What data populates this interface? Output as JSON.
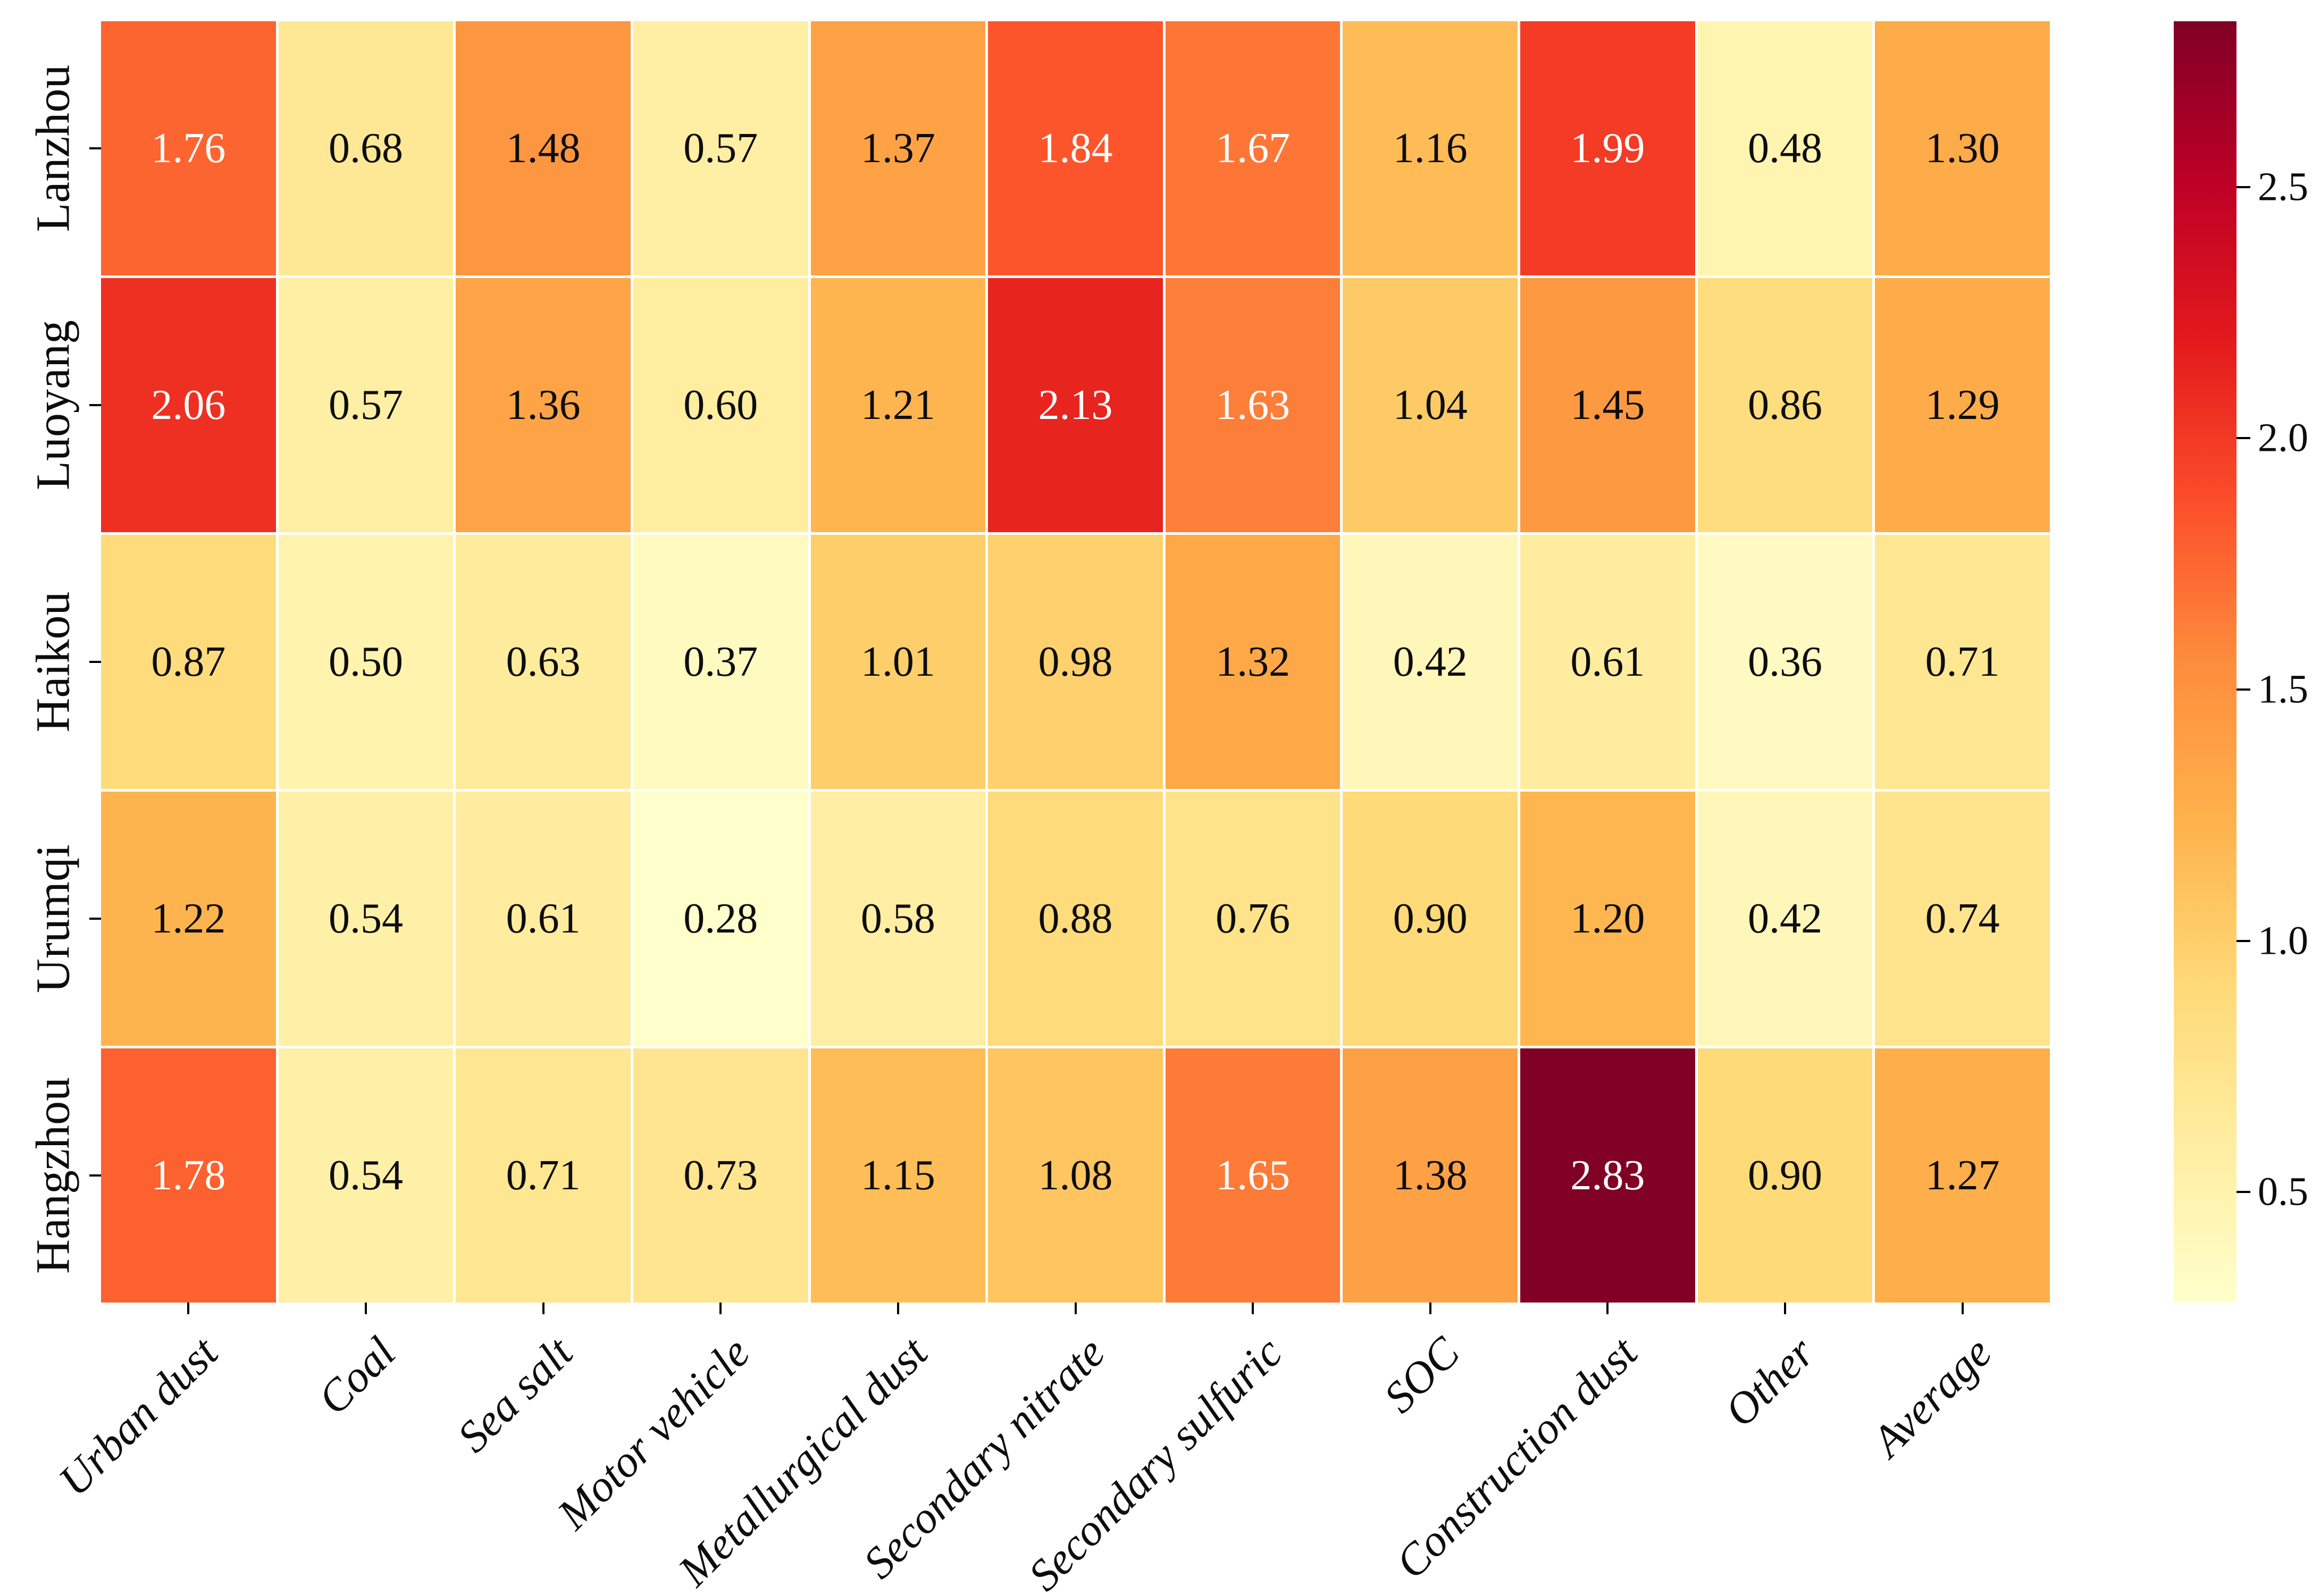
{
  "figure": {
    "background": "#ffffff"
  },
  "chart_data": {
    "type": "heatmap",
    "rows": [
      "Lanzhou",
      "Luoyang",
      "Haikou",
      "Urumqi",
      "Hangzhou"
    ],
    "columns": [
      "Urban dust",
      "Coal",
      "Sea salt",
      "Motor vehicle",
      "Metallurgical dust",
      "Secondary nitrate",
      "Secondary sulfuric",
      "SOC",
      "Construction dust",
      "Other",
      "Average"
    ],
    "values": [
      [
        1.76,
        0.68,
        1.48,
        0.57,
        1.37,
        1.84,
        1.67,
        1.16,
        1.99,
        0.48,
        1.3
      ],
      [
        2.06,
        0.57,
        1.36,
        0.6,
        1.21,
        2.13,
        1.63,
        1.04,
        1.45,
        0.86,
        1.29
      ],
      [
        0.87,
        0.5,
        0.63,
        0.37,
        1.01,
        0.98,
        1.32,
        0.42,
        0.61,
        0.36,
        0.71
      ],
      [
        1.22,
        0.54,
        0.61,
        0.28,
        0.58,
        0.88,
        0.76,
        0.9,
        1.2,
        0.42,
        0.74
      ],
      [
        1.78,
        0.54,
        0.71,
        0.73,
        1.15,
        1.08,
        1.65,
        1.38,
        2.83,
        0.9,
        1.27
      ]
    ],
    "value_decimals": 2,
    "vmin": 0.28,
    "vmax": 2.83,
    "colormap": {
      "name": "YlOrRd",
      "stops": [
        {
          "pos": 0.0,
          "color": "#ffffcc"
        },
        {
          "pos": 0.125,
          "color": "#ffeda0"
        },
        {
          "pos": 0.25,
          "color": "#fed976"
        },
        {
          "pos": 0.375,
          "color": "#feb24c"
        },
        {
          "pos": 0.5,
          "color": "#fd8d3c"
        },
        {
          "pos": 0.625,
          "color": "#fc4e2a"
        },
        {
          "pos": 0.75,
          "color": "#e31a1c"
        },
        {
          "pos": 0.875,
          "color": "#bd0026"
        },
        {
          "pos": 1.0,
          "color": "#800026"
        }
      ]
    },
    "annotation_text_colors": {
      "light": "#ffffff",
      "dark": "#0d0d0d",
      "luminance_threshold": 0.408
    },
    "cell_divider_color": "#ffffff",
    "tick_color": "#000000",
    "colorbar": {
      "position": "right",
      "tick_values": [
        2.5,
        2.0,
        1.5,
        1.0,
        0.5
      ],
      "tick_labels": [
        "2.5",
        "2.0",
        "1.5",
        "1.0",
        "0.5"
      ]
    },
    "xlabel": "",
    "ylabel": "",
    "title": ""
  }
}
